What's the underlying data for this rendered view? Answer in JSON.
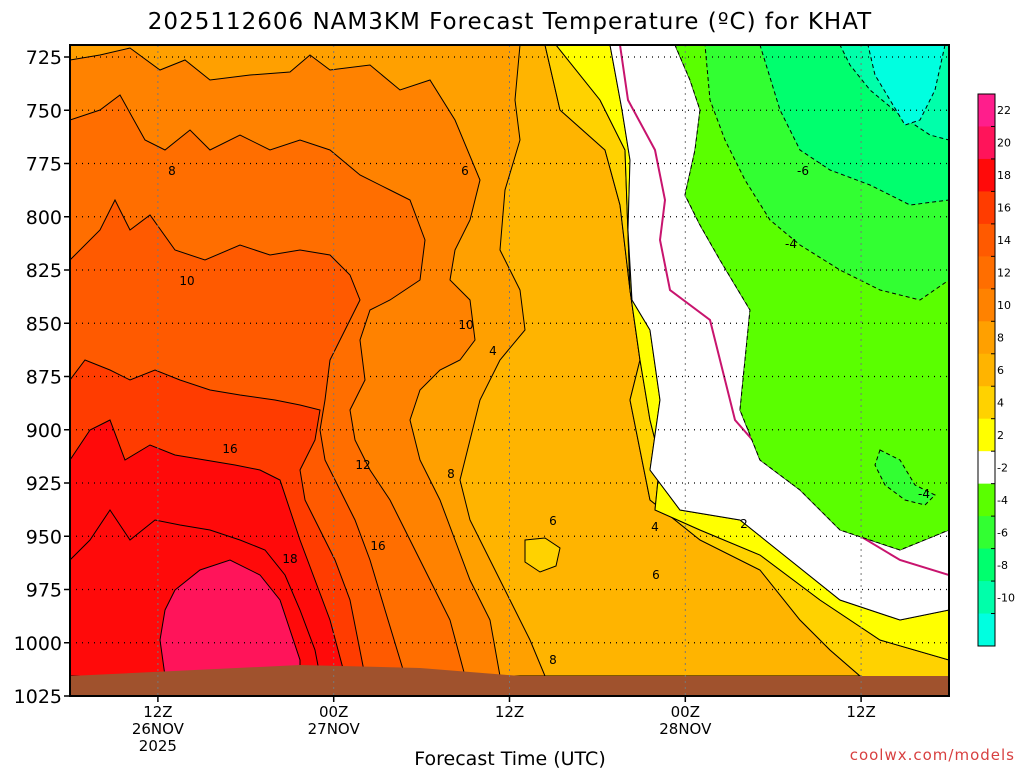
{
  "chart_data": {
    "type": "heatmap",
    "title": "2025112606 NAM3KM Forecast Temperature (ºC) for KHAT",
    "xlabel": "Forecast Time (UTC)",
    "ylabel": "",
    "y_ticks": [
      "725",
      "750",
      "775",
      "800",
      "825",
      "850",
      "875",
      "900",
      "925",
      "950",
      "975",
      "1000",
      "1025"
    ],
    "y_range": [
      725,
      1025
    ],
    "y_direction": "pressure increasing downward",
    "x_ticks": [
      {
        "hour": 12,
        "label1": "12Z",
        "label2": "26NOV",
        "label3": "2025"
      },
      {
        "hour": 24,
        "label1": "00Z",
        "label2": "27NOV",
        "label3": ""
      },
      {
        "hour": 36,
        "label1": "12Z",
        "label2": "",
        "label3": ""
      },
      {
        "hour": 48,
        "label1": "00Z",
        "label2": "28NOV",
        "label3": ""
      },
      {
        "hour": 60,
        "label1": "12Z",
        "label2": "",
        "label3": ""
      }
    ],
    "x_range_hours": [
      6,
      66
    ],
    "colorbar": {
      "ticks": [
        "22",
        "20",
        "18",
        "16",
        "14",
        "12",
        "10",
        "8",
        "6",
        "4",
        "2",
        "-2",
        "-4",
        "-6",
        "-8",
        "-10"
      ],
      "bins": [
        {
          "min": 22,
          "max": 24,
          "color": "#ff1e8c"
        },
        {
          "min": 20,
          "max": 22,
          "color": "#ff145a"
        },
        {
          "min": 18,
          "max": 20,
          "color": "#ff0a0a"
        },
        {
          "min": 16,
          "max": 18,
          "color": "#ff3c00"
        },
        {
          "min": 14,
          "max": 16,
          "color": "#ff5a00"
        },
        {
          "min": 12,
          "max": 14,
          "color": "#ff6e00"
        },
        {
          "min": 10,
          "max": 12,
          "color": "#ff8200"
        },
        {
          "min": 8,
          "max": 10,
          "color": "#ffa000"
        },
        {
          "min": 6,
          "max": 8,
          "color": "#ffb400"
        },
        {
          "min": 4,
          "max": 6,
          "color": "#ffd200"
        },
        {
          "min": 2,
          "max": 4,
          "color": "#ffff00"
        },
        {
          "min": -2,
          "max": 2,
          "color": "#ffffff"
        },
        {
          "min": -4,
          "max": -2,
          "color": "#5aff00"
        },
        {
          "min": -6,
          "max": -4,
          "color": "#32ff32"
        },
        {
          "min": -8,
          "max": -6,
          "color": "#00ff6e"
        },
        {
          "min": -10,
          "max": -8,
          "color": "#00ffaa"
        },
        {
          "min": -12,
          "max": -10,
          "color": "#00ffe0"
        }
      ]
    },
    "contour_labels": [
      "8",
      "6",
      "10",
      "10",
      "4",
      "16",
      "12",
      "8",
      "18",
      "16",
      "6",
      "4",
      "2",
      "6",
      "8",
      "-6",
      "-4",
      "-4"
    ],
    "grid": true,
    "ground_color": "#a0522d",
    "freezing_line_color": "#c8146e"
  },
  "credit": "coolwx.com/models"
}
